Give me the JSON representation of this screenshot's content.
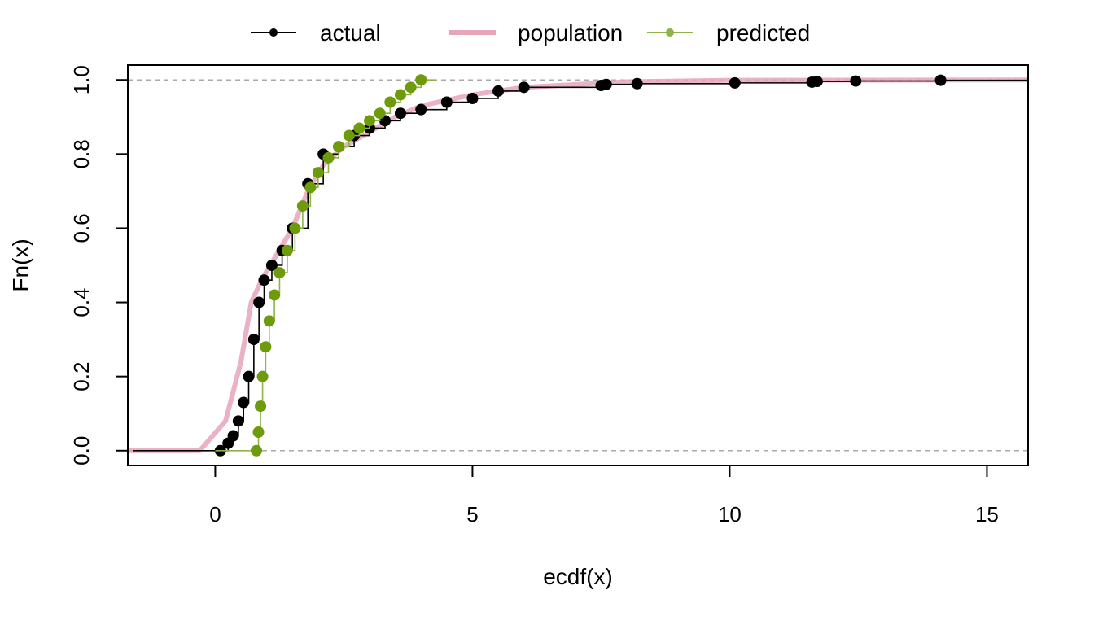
{
  "chart_data": {
    "type": "line",
    "xlabel": "ecdf(x)",
    "ylabel": "Fn(x)",
    "xlim": [
      -1.7,
      15.8
    ],
    "ylim": [
      -0.04,
      1.04
    ],
    "x_ticks": [
      0,
      5,
      10,
      15
    ],
    "x_tick_labels": [
      "0",
      "5",
      "10",
      "15"
    ],
    "y_ticks": [
      0.0,
      0.2,
      0.4,
      0.6,
      0.8,
      1.0
    ],
    "y_tick_labels": [
      "0.0",
      "0.2",
      "0.4",
      "0.6",
      "0.8",
      "1.0"
    ],
    "reference_lines": [
      0,
      1
    ],
    "legend": {
      "placement": "top-outside",
      "entries": [
        {
          "label": "actual",
          "color": "#000000",
          "style": "line-point"
        },
        {
          "label": "population",
          "color": "#e8a5b8",
          "style": "thick-line"
        },
        {
          "label": "predicted",
          "color": "#8db34a",
          "style": "line-point"
        }
      ]
    },
    "series": [
      {
        "name": "actual",
        "color": "#000000",
        "x": [
          0.1,
          0.25,
          0.35,
          0.45,
          0.55,
          0.65,
          0.75,
          0.85,
          0.95,
          1.1,
          1.3,
          1.5,
          1.8,
          2.1,
          2.4,
          2.7,
          3.0,
          3.3,
          3.6,
          4.0,
          4.5,
          5.0,
          5.5,
          6.0,
          7.5,
          7.6,
          8.2,
          10.1,
          11.6,
          11.7,
          12.45,
          14.1
        ],
        "y": [
          0.0,
          0.02,
          0.04,
          0.08,
          0.13,
          0.2,
          0.3,
          0.4,
          0.46,
          0.5,
          0.54,
          0.6,
          0.72,
          0.8,
          0.82,
          0.85,
          0.87,
          0.89,
          0.91,
          0.92,
          0.94,
          0.95,
          0.97,
          0.98,
          0.985,
          0.988,
          0.99,
          0.992,
          0.994,
          0.996,
          0.997,
          0.999
        ]
      },
      {
        "name": "population",
        "color": "#e8a5b8",
        "x": [
          -1.7,
          -0.3,
          0.2,
          0.5,
          0.7,
          0.9,
          1.2,
          1.5,
          1.8,
          2.1,
          2.5,
          3.0,
          3.5,
          4.0,
          5.0,
          6.0,
          8.0,
          10.0,
          15.8
        ],
        "y": [
          0.0,
          0.0,
          0.08,
          0.24,
          0.4,
          0.46,
          0.53,
          0.6,
          0.7,
          0.77,
          0.82,
          0.86,
          0.9,
          0.93,
          0.96,
          0.98,
          0.995,
          0.999,
          1.0
        ]
      },
      {
        "name": "predicted",
        "color": "#6e9b0c",
        "x": [
          0.8,
          0.84,
          0.88,
          0.92,
          0.98,
          1.05,
          1.15,
          1.25,
          1.4,
          1.55,
          1.7,
          1.85,
          2.0,
          2.2,
          2.4,
          2.6,
          2.8,
          3.0,
          3.2,
          3.4,
          3.6,
          3.8,
          4.0
        ],
        "y": [
          0.0,
          0.05,
          0.12,
          0.2,
          0.28,
          0.35,
          0.42,
          0.48,
          0.54,
          0.6,
          0.66,
          0.71,
          0.75,
          0.79,
          0.82,
          0.85,
          0.87,
          0.89,
          0.91,
          0.94,
          0.96,
          0.98,
          1.0
        ]
      }
    ]
  }
}
